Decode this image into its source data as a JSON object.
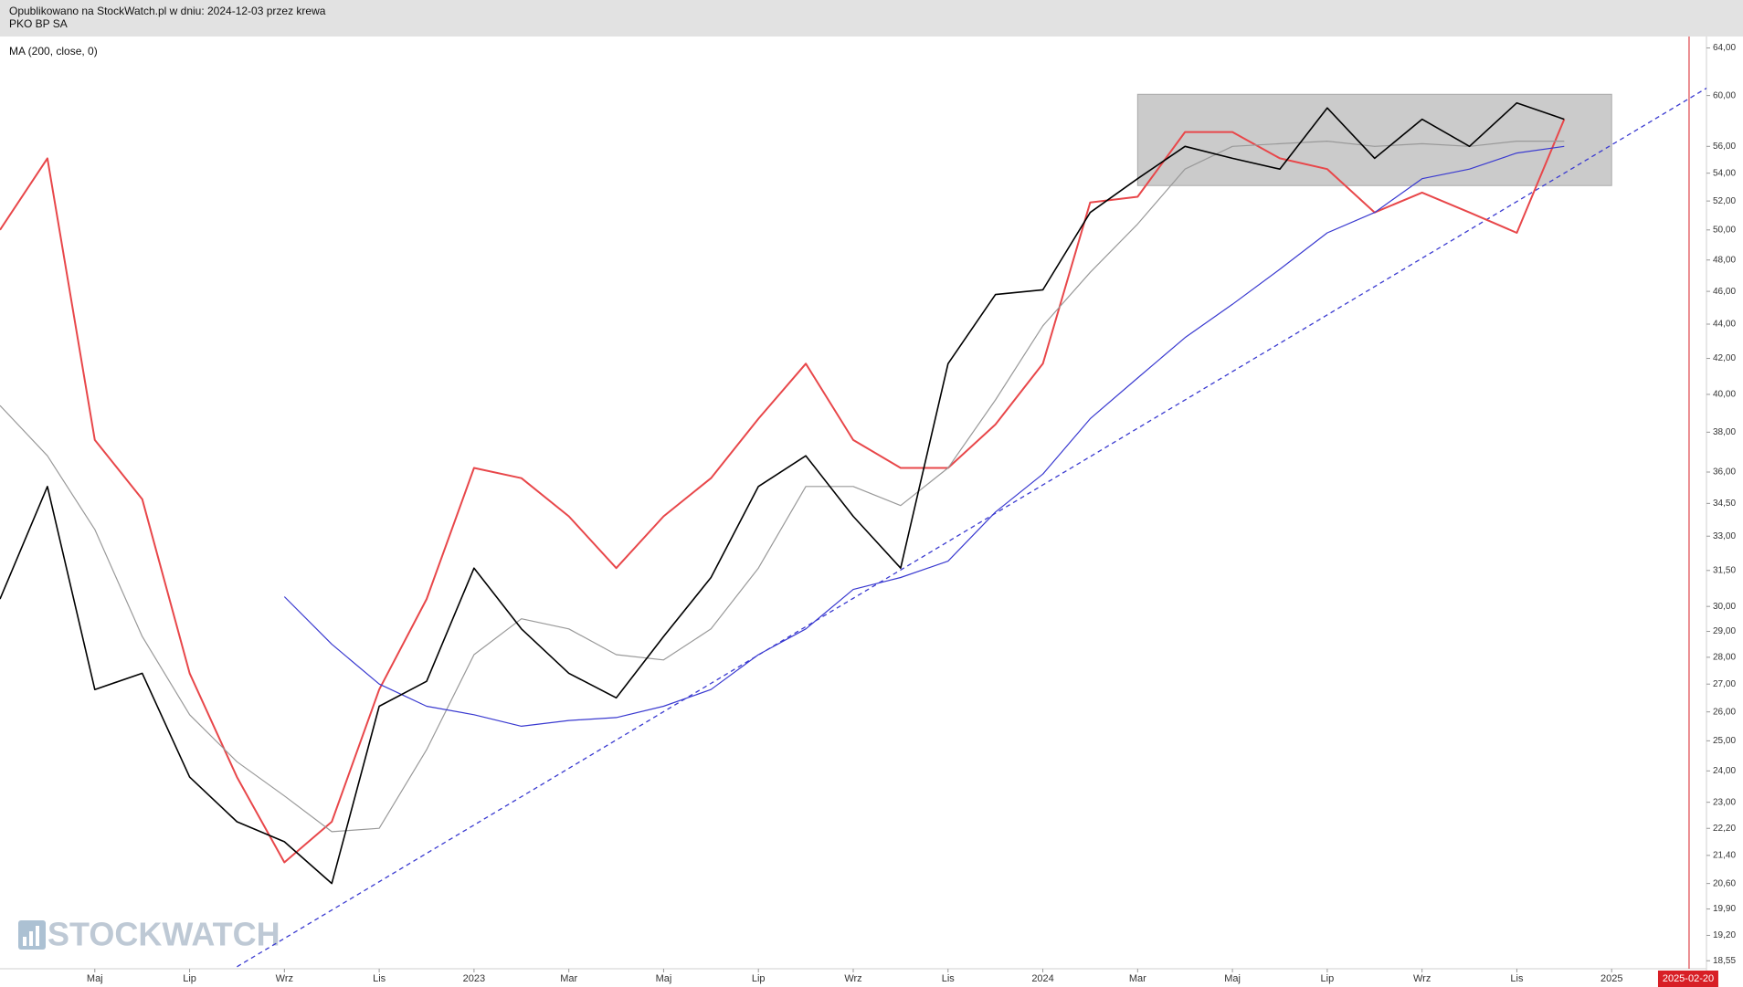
{
  "chart_data": {
    "type": "line",
    "subtitle": "Opublikowano na StockWatch.pl w dniu: 2024-12-03 przez krewa",
    "title": "PKO BP SA",
    "watermark": "STOCKWATCH",
    "log_scale": true,
    "x": [
      "2022-03",
      "2022-04",
      "2022-05",
      "2022-06",
      "2022-07",
      "2022-08",
      "2022-09",
      "2022-10",
      "2022-11",
      "2022-12",
      "2023-01",
      "2023-02",
      "2023-03",
      "2023-04",
      "2023-05",
      "2023-06",
      "2023-07",
      "2023-08",
      "2023-09",
      "2023-10",
      "2023-11",
      "2023-12",
      "2024-01",
      "2024-02",
      "2024-03",
      "2024-04",
      "2024-05",
      "2024-06",
      "2024-07",
      "2024-08",
      "2024-09",
      "2024-10",
      "2024-11",
      "2024-12"
    ],
    "series": [
      {
        "color": "#e8474a",
        "values": [
          50.0,
          55.1,
          37.6,
          34.7,
          27.4,
          23.8,
          21.2,
          22.4,
          26.8,
          30.3,
          36.2,
          35.7,
          33.9,
          31.6,
          33.9,
          35.7,
          38.7,
          41.7,
          37.6,
          36.2,
          36.2,
          38.4,
          41.7,
          51.9,
          52.3,
          57.1,
          57.1,
          55.1,
          54.3,
          51.2,
          52.6,
          51.2,
          49.8,
          58.1
        ]
      },
      {
        "color": "#999999",
        "values": [
          39.4,
          36.8,
          33.3,
          28.8,
          25.9,
          24.3,
          23.2,
          22.1,
          22.2,
          24.7,
          28.1,
          29.5,
          29.1,
          28.1,
          27.9,
          29.1,
          31.6,
          35.3,
          35.3,
          34.4,
          36.2,
          39.7,
          43.9,
          47.2,
          50.4,
          54.3,
          56.0,
          56.2,
          56.4,
          56.0,
          56.2,
          56.0,
          56.4,
          56.4
        ]
      },
      {
        "name": "MA (200, close, 0)",
        "color": "#3a3ad0",
        "values": [
          null,
          null,
          null,
          null,
          null,
          null,
          30.4,
          28.5,
          27.0,
          26.2,
          25.9,
          25.5,
          25.7,
          25.8,
          26.2,
          26.8,
          28.1,
          29.1,
          30.7,
          31.2,
          31.9,
          34.1,
          35.9,
          38.7,
          40.9,
          43.2,
          45.2,
          47.4,
          49.8,
          51.2,
          53.6,
          54.3,
          55.5,
          56.0
        ]
      },
      {
        "color": "#000000",
        "values": [
          30.3,
          35.3,
          26.8,
          27.4,
          23.8,
          22.4,
          21.8,
          20.6,
          26.2,
          27.1,
          31.6,
          29.1,
          27.4,
          26.5,
          28.8,
          31.2,
          35.3,
          36.8,
          33.9,
          31.6,
          41.7,
          45.8,
          46.1,
          51.2,
          53.6,
          56.0,
          55.1,
          54.3,
          59.0,
          55.1,
          58.1,
          56.0,
          59.4,
          58.1
        ]
      }
    ],
    "trendline": {
      "x": [
        "2022-08",
        "2025-03"
      ],
      "values": [
        18.4,
        60.6
      ],
      "color": "#3a3ad0"
    },
    "box": {
      "x": [
        "2024-03",
        "2025-01"
      ],
      "range": [
        53.1,
        60.1
      ],
      "color": "#c8c8c8"
    },
    "marker": {
      "x": "2025-02-20",
      "color": "#d81f26"
    },
    "xlim": [
      "2022-03",
      "2025-03"
    ],
    "xticks": [
      {
        "value": "2022-05",
        "label": "Maj"
      },
      {
        "value": "2022-07",
        "label": "Lip"
      },
      {
        "value": "2022-09",
        "label": "Wrz"
      },
      {
        "value": "2022-11",
        "label": "Lis"
      },
      {
        "value": "2023-01",
        "label": "2023"
      },
      {
        "value": "2023-03",
        "label": "Mar"
      },
      {
        "value": "2023-05",
        "label": "Maj"
      },
      {
        "value": "2023-07",
        "label": "Lip"
      },
      {
        "value": "2023-09",
        "label": "Wrz"
      },
      {
        "value": "2023-11",
        "label": "Lis"
      },
      {
        "value": "2024-01",
        "label": "2024"
      },
      {
        "value": "2024-03",
        "label": "Mar"
      },
      {
        "value": "2024-05",
        "label": "Maj"
      },
      {
        "value": "2024-07",
        "label": "Lip"
      },
      {
        "value": "2024-09",
        "label": "Wrz"
      },
      {
        "value": "2024-11",
        "label": "Lis"
      },
      {
        "value": "2025-01",
        "label": "2025"
      }
    ],
    "ylim": [
      18.35,
      65
    ],
    "yticks": [
      {
        "value": 64,
        "label": "64,00"
      },
      {
        "value": 60,
        "label": "60,00"
      },
      {
        "value": 56,
        "label": "56,00"
      },
      {
        "value": 54,
        "label": "54,00"
      },
      {
        "value": 52,
        "label": "52,00"
      },
      {
        "value": 50,
        "label": "50,00"
      },
      {
        "value": 48,
        "label": "48,00"
      },
      {
        "value": 46,
        "label": "46,00"
      },
      {
        "value": 44,
        "label": "44,00"
      },
      {
        "value": 42,
        "label": "42,00"
      },
      {
        "value": 40,
        "label": "40,00"
      },
      {
        "value": 38,
        "label": "38,00"
      },
      {
        "value": 36,
        "label": "36,00"
      },
      {
        "value": 34.5,
        "label": "34,50"
      },
      {
        "value": 33,
        "label": "33,00"
      },
      {
        "value": 31.5,
        "label": "31,50"
      },
      {
        "value": 30,
        "label": "30,00"
      },
      {
        "value": 29,
        "label": "29,00"
      },
      {
        "value": 28,
        "label": "28,00"
      },
      {
        "value": 27,
        "label": "27,00"
      },
      {
        "value": 26,
        "label": "26,00"
      },
      {
        "value": 25,
        "label": "25,00"
      },
      {
        "value": 24,
        "label": "24,00"
      },
      {
        "value": 23,
        "label": "23,00"
      },
      {
        "value": 22.2,
        "label": "22,20"
      },
      {
        "value": 21.4,
        "label": "21,40"
      },
      {
        "value": 20.6,
        "label": "20,60"
      },
      {
        "value": 19.9,
        "label": "19,90"
      },
      {
        "value": 19.2,
        "label": "19,20"
      },
      {
        "value": 18.55,
        "label": "18,55"
      }
    ],
    "grid": false
  }
}
